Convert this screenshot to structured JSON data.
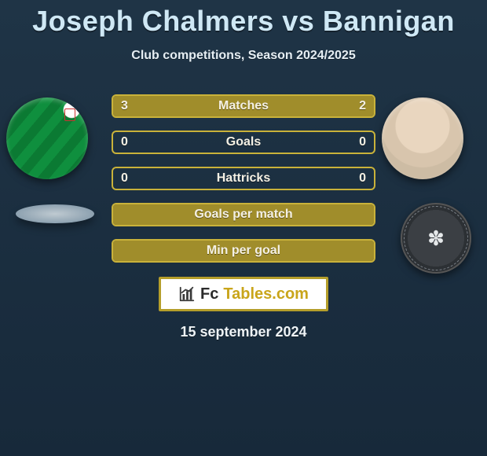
{
  "header": {
    "title": "Joseph Chalmers vs Bannigan",
    "subtitle": "Club competitions, Season 2024/2025"
  },
  "colors": {
    "accent": "#9e8a28",
    "bar_border": "#c9b23a",
    "bar_fill": "#a08d2b",
    "brand_border": "#b59e2b",
    "brand_icon": "#3a3a3a",
    "brand_fc": "#2b2b2b",
    "brand_tables": "#c9a51a"
  },
  "bars": [
    {
      "label": "Matches",
      "left": "3",
      "right": "2",
      "left_fill_pct": 60,
      "right_fill_pct": 40
    },
    {
      "label": "Goals",
      "left": "0",
      "right": "0",
      "left_fill_pct": 0,
      "right_fill_pct": 0
    },
    {
      "label": "Hattricks",
      "left": "0",
      "right": "0",
      "left_fill_pct": 0,
      "right_fill_pct": 0
    },
    {
      "label": "Goals per match",
      "left": "",
      "right": "",
      "left_fill_pct": 100,
      "right_fill_pct": 0
    },
    {
      "label": "Min per goal",
      "left": "",
      "right": "",
      "left_fill_pct": 100,
      "right_fill_pct": 0
    }
  ],
  "brand": {
    "fc": "Fc",
    "tables": "Tables.com"
  },
  "date": "15 september 2024",
  "avatars": {
    "left_player_name": "joseph-chalmers-avatar",
    "right_player_name": "bannigan-avatar",
    "right_crest_glyph": "✽"
  }
}
